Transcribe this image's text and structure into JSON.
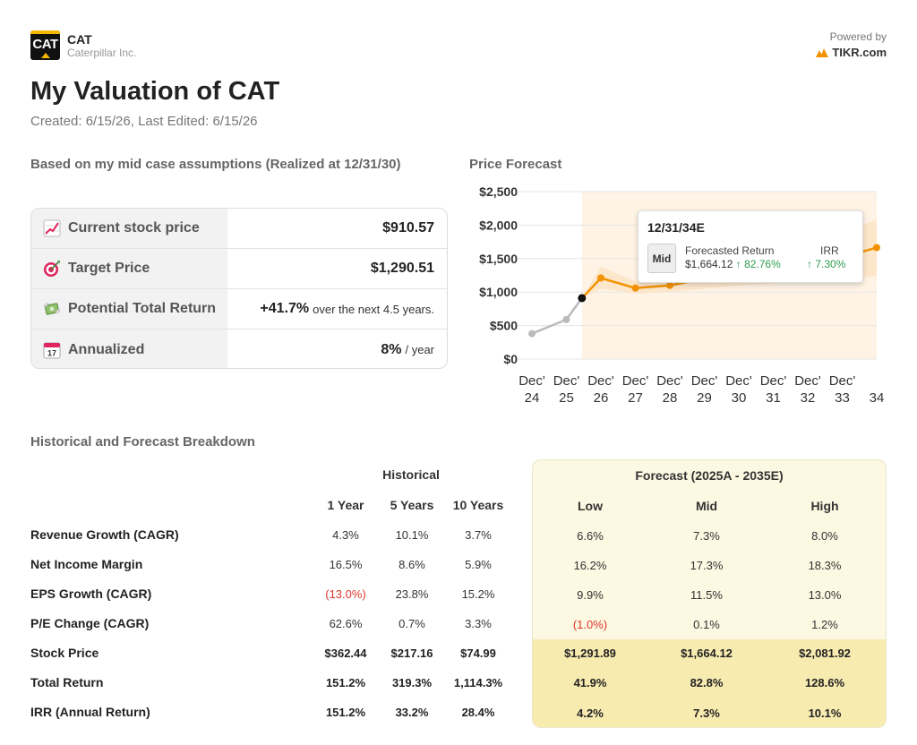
{
  "header": {
    "logo_text": "CAT",
    "ticker": "CAT",
    "company": "Caterpillar Inc.",
    "powered_by": "Powered by",
    "brand": "TIKR.com"
  },
  "title": "My Valuation of CAT",
  "created": "Created: 6/15/26, Last Edited: 6/15/26",
  "summary": {
    "heading": "Based on my mid case assumptions (Realized at 12/31/30)",
    "rows": [
      {
        "icon": "chart-increasing-icon",
        "label": "Current stock price",
        "value": "$910.57",
        "suffix": ""
      },
      {
        "icon": "target-icon",
        "label": "Target Price",
        "value": "$1,290.51",
        "suffix": ""
      },
      {
        "icon": "money-wings-icon",
        "label": "Potential Total Return",
        "value": "+41.7%",
        "suffix": "over the next 4.5 years."
      },
      {
        "icon": "calendar-icon",
        "label": "Annualized",
        "value": "8%",
        "suffix": "/ year"
      }
    ]
  },
  "forecast_chart": {
    "heading": "Price Forecast",
    "tooltip": {
      "date": "12/31/34E",
      "case": "Mid",
      "return_label": "Forecasted Return",
      "irr_label": "IRR",
      "price": "$1,664.12",
      "return_value": "↑ 82.76%",
      "irr_value": "↑ 7.30%"
    }
  },
  "chart_data": {
    "type": "line",
    "title": "Price Forecast",
    "categories": [
      "Dec' 24",
      "Dec' 25",
      "Dec' 26",
      "Dec' 27",
      "Dec' 28",
      "Dec' 29",
      "Dec' 30",
      "Dec' 31",
      "Dec' 32",
      "Dec' 33",
      "34"
    ],
    "yticks": [
      "$0",
      "$500",
      "$1,000",
      "$1,500",
      "$2,000",
      "$2,500"
    ],
    "ylim": [
      0,
      2500
    ],
    "forecast_start_x": 1.45,
    "series": [
      {
        "role": "historical",
        "color": "#bbbbbb",
        "points": [
          [
            0,
            380
          ],
          [
            1,
            590
          ],
          [
            1.45,
            910
          ]
        ]
      },
      {
        "role": "forecast-mid",
        "color": "#f39200",
        "points": [
          [
            1.45,
            910
          ],
          [
            2,
            1210
          ],
          [
            3,
            1060
          ],
          [
            4,
            1100
          ],
          [
            5,
            1200
          ],
          [
            6,
            1291
          ],
          [
            7,
            1360
          ],
          [
            8,
            1440
          ],
          [
            9,
            1520
          ],
          [
            10,
            1664
          ]
        ]
      },
      {
        "role": "forecast-band-low",
        "color": "#fde6cc",
        "points": [
          [
            1.45,
            910
          ],
          [
            2,
            1050
          ],
          [
            3,
            980
          ],
          [
            4,
            1000
          ],
          [
            5,
            1050
          ],
          [
            6,
            1100
          ],
          [
            7,
            1130
          ],
          [
            8,
            1160
          ],
          [
            9,
            1190
          ],
          [
            10,
            1240
          ]
        ]
      },
      {
        "role": "forecast-band-high",
        "color": "#fde6cc",
        "points": [
          [
            1.45,
            910
          ],
          [
            2,
            1380
          ],
          [
            3,
            1160
          ],
          [
            4,
            1230
          ],
          [
            5,
            1360
          ],
          [
            6,
            1500
          ],
          [
            7,
            1620
          ],
          [
            8,
            1750
          ],
          [
            9,
            1900
          ],
          [
            10,
            2081
          ]
        ]
      }
    ],
    "marker": {
      "x": 1.45,
      "y": 910,
      "color": "#111111"
    },
    "accent_color": "#f39200"
  },
  "breakdown": {
    "heading": "Historical and Forecast Breakdown",
    "historical_title": "Historical",
    "forecast_title": "Forecast (2025A - 2035E)",
    "historical_cols": [
      "1 Year",
      "5 Years",
      "10 Years"
    ],
    "forecast_cols": [
      "Low",
      "Mid",
      "High"
    ],
    "rows": [
      {
        "label": "Revenue Growth (CAGR)",
        "hist": [
          "4.3%",
          "10.1%",
          "3.7%"
        ],
        "fc": [
          "6.6%",
          "7.3%",
          "8.0%"
        ],
        "bold": false
      },
      {
        "label": "Net Income Margin",
        "hist": [
          "16.5%",
          "8.6%",
          "5.9%"
        ],
        "fc": [
          "16.2%",
          "17.3%",
          "18.3%"
        ],
        "bold": false
      },
      {
        "label": "EPS Growth (CAGR)",
        "hist": [
          "(13.0%)",
          "23.8%",
          "15.2%"
        ],
        "fc": [
          "9.9%",
          "11.5%",
          "13.0%"
        ],
        "bold": false
      },
      {
        "label": "P/E Change (CAGR)",
        "hist": [
          "62.6%",
          "0.7%",
          "3.3%"
        ],
        "fc": [
          "(1.0%)",
          "0.1%",
          "1.2%"
        ],
        "bold": false
      },
      {
        "label": "Stock Price",
        "hist": [
          "$362.44",
          "$217.16",
          "$74.99"
        ],
        "fc": [
          "$1,291.89",
          "$1,664.12",
          "$2,081.92"
        ],
        "bold": true
      },
      {
        "label": "Total Return",
        "hist": [
          "151.2%",
          "319.3%",
          "1,114.3%"
        ],
        "fc": [
          "41.9%",
          "82.8%",
          "128.6%"
        ],
        "bold": true
      },
      {
        "label": "IRR (Annual Return)",
        "hist": [
          "151.2%",
          "33.2%",
          "28.4%"
        ],
        "fc": [
          "4.2%",
          "7.3%",
          "10.1%"
        ],
        "bold": true
      }
    ]
  }
}
